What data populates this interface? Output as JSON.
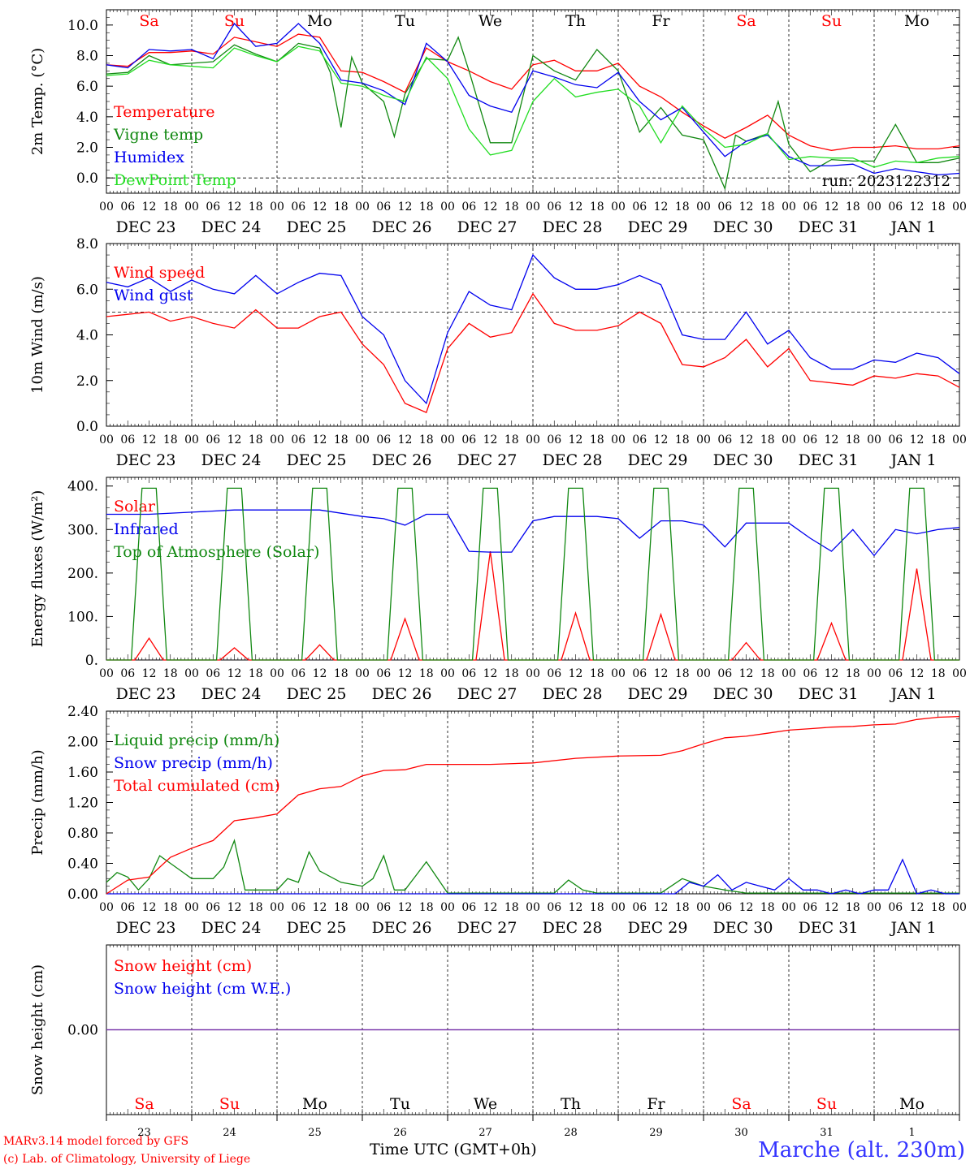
{
  "colors": {
    "temperature": "#ff0000",
    "vigne_temp": "#118811",
    "humidex": "#0000ee",
    "dewpoint": "#22dd22",
    "weekend_day": "#ff0000",
    "weekday": "#000000",
    "station": "#3333ff",
    "snow_line": "#7733aa"
  },
  "days_top": [
    "Sa",
    "Su",
    "Mo",
    "Tu",
    "We",
    "Th",
    "Fr",
    "Sa",
    "Su",
    "Mo"
  ],
  "days_bottom": [
    "Sa",
    "Su",
    "Mo",
    "Tu",
    "We",
    "Th",
    "Fr",
    "Sa",
    "Su",
    "Mo"
  ],
  "day_numbers": [
    "23",
    "24",
    "25",
    "26",
    "27",
    "28",
    "29",
    "30",
    "31",
    "1"
  ],
  "date_labels": [
    "DEC 23",
    "DEC 24",
    "DEC 25",
    "DEC 26",
    "DEC 27",
    "DEC 28",
    "DEC 29",
    "DEC 30",
    "DEC 31",
    "JAN  1"
  ],
  "hour_labels": [
    "00",
    "06",
    "12",
    "18"
  ],
  "hour_label_end": "00",
  "footer": {
    "credit_line1": "MARv3.14 model forced by GFS",
    "credit_line2": "(c) Lab. of Climatology, University of Liege",
    "time_label": "Time UTC (GMT+0h)",
    "station": "Marche (alt. 230m)"
  },
  "chart_data": [
    {
      "type": "line",
      "ylabel": "2m Temp. (°C)",
      "ylim": [
        -1.0,
        11.0
      ],
      "yticks": [
        "0.0",
        "2.0",
        "4.0",
        "6.0",
        "8.0",
        "10.0"
      ],
      "ytick_values": [
        0,
        2,
        4,
        6,
        8,
        10
      ],
      "reference_line": 0,
      "run_label": "run: 2023122312",
      "x_unit": "hours since DEC 23 00 UTC",
      "xlim": [
        0,
        240
      ],
      "series": [
        {
          "name": "Temperature",
          "color": "temperature",
          "x": [
            0,
            6,
            12,
            18,
            24,
            30,
            36,
            42,
            48,
            54,
            60,
            66,
            72,
            78,
            84,
            90,
            96,
            102,
            108,
            114,
            120,
            126,
            132,
            138,
            144,
            150,
            156,
            162,
            168,
            174,
            180,
            186,
            192,
            198,
            204,
            210,
            216,
            222,
            228,
            234,
            240
          ],
          "y": [
            7.4,
            7.3,
            8.2,
            8.2,
            8.3,
            8.1,
            9.2,
            8.9,
            8.6,
            9.4,
            9.2,
            7.0,
            6.9,
            6.3,
            5.6,
            8.5,
            7.6,
            7.0,
            6.3,
            5.8,
            7.4,
            7.7,
            7.0,
            7.0,
            7.5,
            6.0,
            5.3,
            4.3,
            3.4,
            2.6,
            3.3,
            4.1,
            2.8,
            2.1,
            1.8,
            2.0,
            2.0,
            2.1,
            1.9,
            1.9,
            2.1
          ]
        },
        {
          "name": "Vigne temp",
          "color": "vigne_temp",
          "x": [
            0,
            6,
            12,
            18,
            24,
            30,
            36,
            42,
            48,
            54,
            60,
            63,
            66,
            69,
            72,
            78,
            81,
            84,
            90,
            96,
            99,
            102,
            108,
            114,
            120,
            126,
            132,
            138,
            144,
            150,
            156,
            162,
            168,
            174,
            177,
            180,
            186,
            189,
            192,
            198,
            204,
            210,
            216,
            222,
            228,
            234,
            240
          ],
          "y": [
            6.8,
            6.9,
            8.0,
            7.4,
            7.5,
            7.6,
            8.7,
            8.1,
            7.6,
            8.8,
            8.5,
            6.9,
            3.3,
            7.9,
            6.2,
            5.0,
            2.7,
            5.5,
            7.8,
            7.7,
            9.2,
            7.0,
            2.3,
            2.3,
            8.0,
            7.0,
            6.4,
            8.4,
            7.0,
            3.0,
            4.6,
            2.8,
            2.5,
            -0.7,
            2.8,
            2.4,
            2.9,
            5.0,
            2.2,
            0.4,
            1.2,
            1.1,
            1.1,
            3.5,
            1.0,
            1.0,
            1.3
          ]
        },
        {
          "name": "Humidex",
          "color": "humidex",
          "x": [
            0,
            6,
            12,
            18,
            24,
            30,
            36,
            42,
            48,
            54,
            60,
            66,
            72,
            78,
            84,
            90,
            96,
            102,
            108,
            114,
            120,
            126,
            132,
            138,
            144,
            150,
            156,
            162,
            168,
            174,
            180,
            186,
            192,
            198,
            204,
            210,
            216,
            222,
            228,
            234,
            240
          ],
          "y": [
            7.4,
            7.2,
            8.4,
            8.3,
            8.4,
            7.8,
            10.1,
            8.6,
            8.8,
            10.1,
            8.8,
            6.4,
            6.2,
            5.7,
            4.8,
            8.8,
            7.6,
            5.4,
            4.7,
            4.3,
            7.0,
            6.6,
            6.1,
            5.9,
            6.9,
            5.0,
            3.8,
            4.6,
            3.0,
            1.4,
            2.4,
            2.8,
            1.4,
            0.8,
            0.8,
            0.9,
            0.3,
            0.6,
            0.4,
            0.2,
            0.3
          ]
        },
        {
          "name": "DewPoint Temp",
          "color": "dewpoint",
          "x": [
            0,
            6,
            12,
            18,
            24,
            30,
            36,
            42,
            48,
            54,
            60,
            66,
            72,
            78,
            84,
            90,
            96,
            102,
            108,
            114,
            120,
            126,
            132,
            138,
            144,
            150,
            156,
            162,
            168,
            174,
            180,
            186,
            192,
            198,
            204,
            210,
            216,
            222,
            228,
            234,
            240
          ],
          "y": [
            6.7,
            6.8,
            7.7,
            7.4,
            7.3,
            7.2,
            8.5,
            8.0,
            7.6,
            8.6,
            8.3,
            6.2,
            6.0,
            5.4,
            5.0,
            7.9,
            6.5,
            3.2,
            1.5,
            1.8,
            5.0,
            6.5,
            5.3,
            5.6,
            5.8,
            4.7,
            2.3,
            4.7,
            3.2,
            2.0,
            2.2,
            2.9,
            1.2,
            1.4,
            1.3,
            1.3,
            0.7,
            1.1,
            1.0,
            1.3,
            1.4
          ]
        }
      ]
    },
    {
      "type": "line",
      "ylabel": "10m Wind (m/s)",
      "ylim": [
        0.0,
        8.0
      ],
      "yticks": [
        "0.0",
        "2.0",
        "4.0",
        "6.0",
        "8.0"
      ],
      "ytick_values": [
        0,
        2,
        4,
        6,
        8
      ],
      "reference_line": 5,
      "x_unit": "hours since DEC 23 00 UTC",
      "xlim": [
        0,
        240
      ],
      "series": [
        {
          "name": "Wind speed",
          "color": "temperature",
          "x": [
            0,
            6,
            12,
            18,
            24,
            30,
            36,
            42,
            48,
            54,
            60,
            66,
            72,
            78,
            84,
            90,
            96,
            102,
            108,
            114,
            120,
            126,
            132,
            138,
            144,
            150,
            156,
            162,
            168,
            174,
            180,
            186,
            192,
            198,
            204,
            210,
            216,
            222,
            228,
            234,
            240
          ],
          "y": [
            4.8,
            4.9,
            5.0,
            4.6,
            4.8,
            4.5,
            4.3,
            5.1,
            4.3,
            4.3,
            4.8,
            5.0,
            3.6,
            2.7,
            1.0,
            0.6,
            3.4,
            4.5,
            3.9,
            4.1,
            5.8,
            4.5,
            4.2,
            4.2,
            4.4,
            5.0,
            4.5,
            2.7,
            2.6,
            3.0,
            3.8,
            2.6,
            3.4,
            2.0,
            1.9,
            1.8,
            2.2,
            2.1,
            2.3,
            2.2,
            1.7
          ]
        },
        {
          "name": "Wind gust",
          "color": "humidex",
          "x": [
            0,
            6,
            12,
            18,
            24,
            30,
            36,
            42,
            48,
            54,
            60,
            66,
            72,
            78,
            84,
            90,
            96,
            102,
            108,
            114,
            120,
            126,
            132,
            138,
            144,
            150,
            156,
            162,
            168,
            174,
            180,
            186,
            192,
            198,
            204,
            210,
            216,
            222,
            228,
            234,
            240
          ],
          "y": [
            6.3,
            6.1,
            6.5,
            5.9,
            6.4,
            6.0,
            5.8,
            6.6,
            5.8,
            6.3,
            6.7,
            6.6,
            4.8,
            4.0,
            2.0,
            1.0,
            4.1,
            5.9,
            5.3,
            5.1,
            7.5,
            6.5,
            6.0,
            6.0,
            6.2,
            6.6,
            6.2,
            4.0,
            3.8,
            3.8,
            5.0,
            3.6,
            4.2,
            3.0,
            2.5,
            2.5,
            2.9,
            2.8,
            3.2,
            3.0,
            2.3
          ]
        }
      ]
    },
    {
      "type": "line",
      "ylabel": "Energy fluxes (W/m²)",
      "ylim": [
        0,
        420
      ],
      "yticks": [
        "0.",
        "100.",
        "200.",
        "300.",
        "400."
      ],
      "ytick_values": [
        0,
        100,
        200,
        300,
        400
      ],
      "x_unit": "hours since DEC 23 00 UTC",
      "xlim": [
        0,
        240
      ],
      "series": [
        {
          "name": "Solar",
          "color": "temperature",
          "solar_peaks": [
            50,
            28,
            35,
            95,
            250,
            108,
            105,
            40,
            85,
            210
          ]
        },
        {
          "name": "Infrared",
          "color": "humidex",
          "x": [
            0,
            12,
            24,
            36,
            48,
            60,
            72,
            78,
            84,
            90,
            96,
            102,
            108,
            114,
            120,
            126,
            132,
            138,
            144,
            150,
            156,
            162,
            168,
            174,
            180,
            186,
            192,
            198,
            204,
            210,
            216,
            222,
            228,
            234,
            240
          ],
          "y": [
            335,
            335,
            340,
            345,
            345,
            345,
            330,
            325,
            310,
            335,
            335,
            250,
            248,
            248,
            320,
            330,
            330,
            330,
            325,
            280,
            320,
            320,
            310,
            260,
            315,
            315,
            315,
            280,
            250,
            300,
            240,
            300,
            290,
            300,
            305
          ]
        },
        {
          "name": "Top of Atmosphere (Solar)",
          "color": "vigne_temp",
          "toa_peak": 395
        }
      ]
    },
    {
      "type": "line",
      "ylabel": "Precip (mm/h)",
      "ylim": [
        0.0,
        2.4
      ],
      "yticks": [
        "0.00",
        "0.40",
        "0.80",
        "1.20",
        "1.60",
        "2.00",
        "2.40"
      ],
      "ytick_values": [
        0.0,
        0.4,
        0.8,
        1.2,
        1.6,
        2.0,
        2.4
      ],
      "x_unit": "hours since DEC 23 00 UTC",
      "xlim": [
        0,
        240
      ],
      "series": [
        {
          "name": "Liquid precip (mm/h)",
          "color": "vigne_temp",
          "x": [
            0,
            3,
            6,
            9,
            12,
            15,
            18,
            21,
            24,
            30,
            33,
            36,
            39,
            42,
            48,
            51,
            54,
            57,
            60,
            66,
            72,
            75,
            78,
            81,
            84,
            90,
            96,
            102,
            108,
            120,
            126,
            130,
            134,
            138,
            144,
            156,
            162,
            168,
            174,
            180,
            186,
            192,
            198,
            204,
            210,
            216,
            222,
            228,
            234,
            240
          ],
          "y": [
            0.15,
            0.28,
            0.22,
            0.05,
            0.2,
            0.5,
            0.4,
            0.3,
            0.2,
            0.2,
            0.35,
            0.7,
            0.05,
            0.05,
            0.05,
            0.2,
            0.15,
            0.55,
            0.3,
            0.15,
            0.1,
            0.2,
            0.5,
            0.05,
            0.05,
            0.42,
            0.01,
            0.01,
            0.01,
            0.01,
            0.01,
            0.18,
            0.05,
            0.01,
            0.01,
            0.01,
            0.2,
            0.1,
            0.05,
            0.01,
            0.01,
            0.01,
            0.01,
            0.01,
            0.01,
            0.01,
            0.01,
            0.01,
            0.01,
            0.01
          ]
        },
        {
          "name": "Snow precip (mm/h)",
          "color": "humidex",
          "x": [
            0,
            160,
            164,
            168,
            172,
            176,
            180,
            184,
            188,
            192,
            196,
            200,
            204,
            208,
            212,
            216,
            220,
            224,
            228,
            232,
            236,
            240
          ],
          "y": [
            0.0,
            0.0,
            0.15,
            0.1,
            0.25,
            0.05,
            0.15,
            0.1,
            0.05,
            0.2,
            0.05,
            0.05,
            0.0,
            0.05,
            0.0,
            0.05,
            0.05,
            0.45,
            0.0,
            0.05,
            0.0,
            0.0
          ]
        },
        {
          "name": "Total cumulated (cm)",
          "color": "temperature",
          "x": [
            0,
            6,
            12,
            18,
            24,
            30,
            36,
            42,
            48,
            54,
            60,
            66,
            72,
            78,
            84,
            90,
            96,
            102,
            108,
            120,
            132,
            144,
            156,
            162,
            168,
            174,
            180,
            186,
            192,
            198,
            204,
            210,
            216,
            222,
            228,
            234,
            240
          ],
          "y": [
            0.0,
            0.18,
            0.22,
            0.48,
            0.6,
            0.7,
            0.96,
            1.0,
            1.05,
            1.3,
            1.38,
            1.41,
            1.55,
            1.62,
            1.63,
            1.7,
            1.7,
            1.7,
            1.7,
            1.72,
            1.78,
            1.81,
            1.82,
            1.88,
            1.97,
            2.05,
            2.07,
            2.11,
            2.15,
            2.17,
            2.19,
            2.2,
            2.22,
            2.23,
            2.29,
            2.32,
            2.33
          ]
        }
      ]
    },
    {
      "type": "line",
      "ylabel": "Snow height (cm)",
      "ylim": [
        -1.0,
        1.0
      ],
      "yticks": [
        "0.00"
      ],
      "ytick_values": [
        0
      ],
      "x_unit": "hours since DEC 23 00 UTC",
      "xlim": [
        0,
        240
      ],
      "series": [
        {
          "name": "Snow height (cm)",
          "color": "temperature",
          "x": [
            0,
            240
          ],
          "y": [
            0,
            0
          ]
        },
        {
          "name": "Snow height (cm W.E.)",
          "color": "humidex",
          "x": [
            0,
            240
          ],
          "y": [
            0,
            0
          ]
        }
      ]
    }
  ]
}
